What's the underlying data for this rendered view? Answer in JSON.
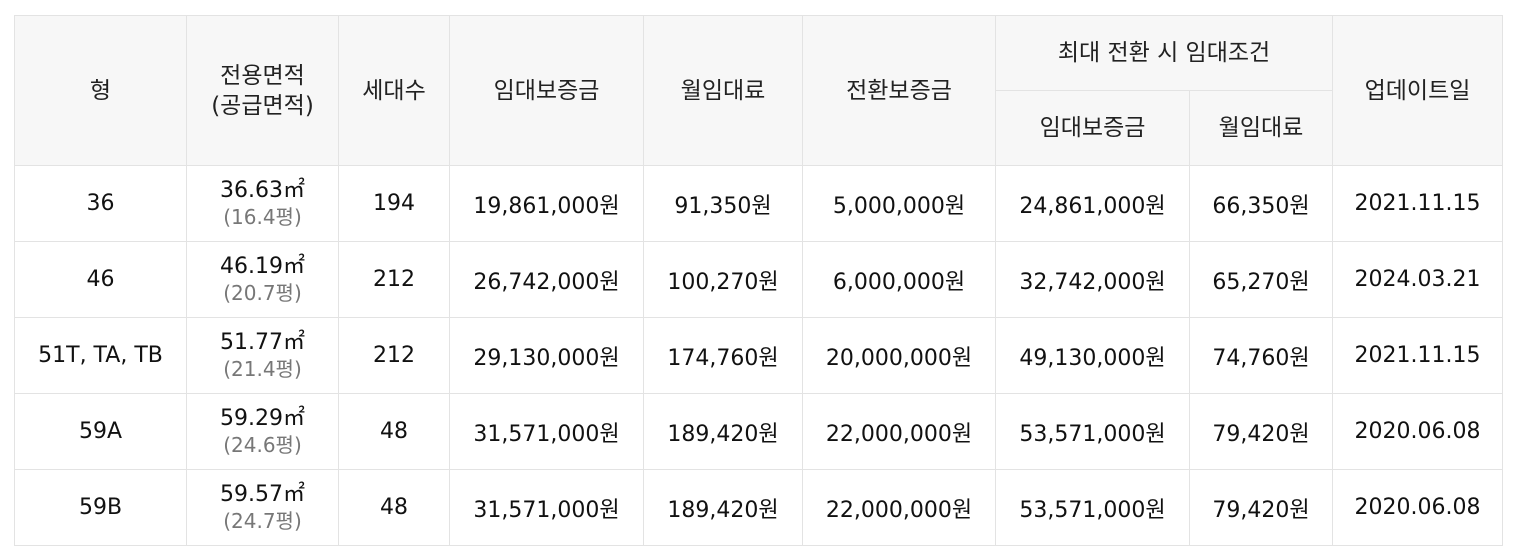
{
  "headers": {
    "type": "형",
    "area_line1": "전용면적",
    "area_line2": "(공급면적)",
    "households": "세대수",
    "deposit": "임대보증금",
    "monthly_rent": "월임대료",
    "conversion_deposit": "전환보증금",
    "max_conversion": "최대 전환 시 임대조건",
    "max_deposit": "임대보증금",
    "max_monthly_rent": "월임대료",
    "updated": "업데이트일"
  },
  "rows": [
    {
      "type": "36",
      "area": "36.63㎡",
      "supply": "(16.4평)",
      "households": "194",
      "deposit": "19,861,000원",
      "monthly_rent": "91,350원",
      "conversion_deposit": "5,000,000원",
      "max_deposit": "24,861,000원",
      "max_monthly_rent": "66,350원",
      "updated": "2021.11.15"
    },
    {
      "type": "46",
      "area": "46.19㎡",
      "supply": "(20.7평)",
      "households": "212",
      "deposit": "26,742,000원",
      "monthly_rent": "100,270원",
      "conversion_deposit": "6,000,000원",
      "max_deposit": "32,742,000원",
      "max_monthly_rent": "65,270원",
      "updated": "2024.03.21"
    },
    {
      "type": "51T, TA, TB",
      "area": "51.77㎡",
      "supply": "(21.4평)",
      "households": "212",
      "deposit": "29,130,000원",
      "monthly_rent": "174,760원",
      "conversion_deposit": "20,000,000원",
      "max_deposit": "49,130,000원",
      "max_monthly_rent": "74,760원",
      "updated": "2021.11.15"
    },
    {
      "type": "59A",
      "area": "59.29㎡",
      "supply": "(24.6평)",
      "households": "48",
      "deposit": "31,571,000원",
      "monthly_rent": "189,420원",
      "conversion_deposit": "22,000,000원",
      "max_deposit": "53,571,000원",
      "max_monthly_rent": "79,420원",
      "updated": "2020.06.08"
    },
    {
      "type": "59B",
      "area": "59.57㎡",
      "supply": "(24.7평)",
      "households": "48",
      "deposit": "31,571,000원",
      "monthly_rent": "189,420원",
      "conversion_deposit": "22,000,000원",
      "max_deposit": "53,571,000원",
      "max_monthly_rent": "79,420원",
      "updated": "2020.06.08"
    }
  ]
}
